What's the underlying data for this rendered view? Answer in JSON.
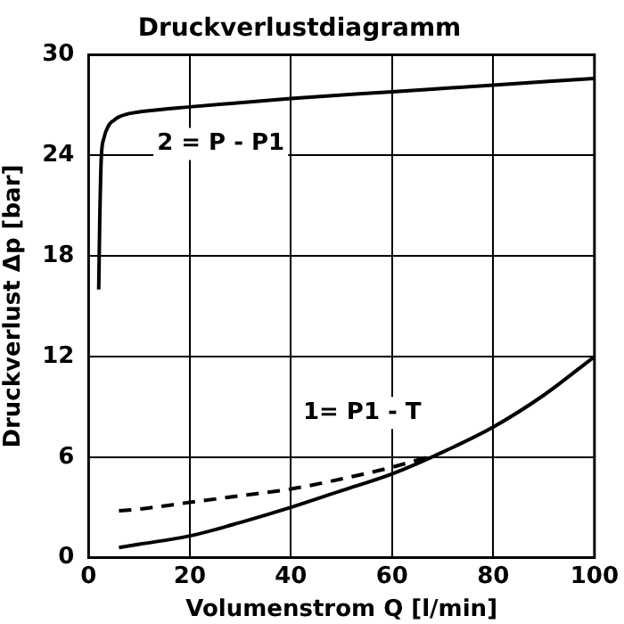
{
  "chart_data": {
    "type": "line",
    "title": "Druckverlustdiagramm",
    "xlabel": "Volumenstrom Q [l/min]",
    "ylabel": "Druckverlust Δp [bar]",
    "xlim": [
      0,
      100
    ],
    "xticks": [
      0,
      20,
      40,
      60,
      80,
      100
    ],
    "ylim": [
      0,
      30
    ],
    "yticks": [
      0,
      6,
      12,
      18,
      24,
      30
    ],
    "grid": true,
    "legend": false,
    "marker": "none",
    "series": [
      {
        "name": "2 = P - P1",
        "color": "#000000",
        "line_style": "solid",
        "x": [
          2,
          2.2,
          2.5,
          3,
          4,
          5,
          6,
          8,
          10,
          20,
          40,
          60,
          80,
          100
        ],
        "values": [
          16,
          20,
          23.8,
          25,
          25.8,
          26.1,
          26.3,
          26.5,
          26.6,
          26.9,
          27.4,
          27.8,
          28.2,
          28.6
        ]
      },
      {
        "name": "1= P1 - T",
        "color": "#000000",
        "line_style": "solid",
        "x": [
          6,
          10,
          20,
          30,
          40,
          50,
          60,
          70,
          80,
          90,
          100
        ],
        "values": [
          0.6,
          0.8,
          1.3,
          2.1,
          3.0,
          4.0,
          5.0,
          6.3,
          7.8,
          9.7,
          12
        ]
      },
      {
        "color": "#000000",
        "line_style": "dashed",
        "x": [
          6,
          10,
          20,
          30,
          40,
          50,
          60,
          67
        ],
        "values": [
          2.8,
          2.9,
          3.3,
          3.7,
          4.1,
          4.7,
          5.4,
          6.0
        ]
      }
    ]
  }
}
